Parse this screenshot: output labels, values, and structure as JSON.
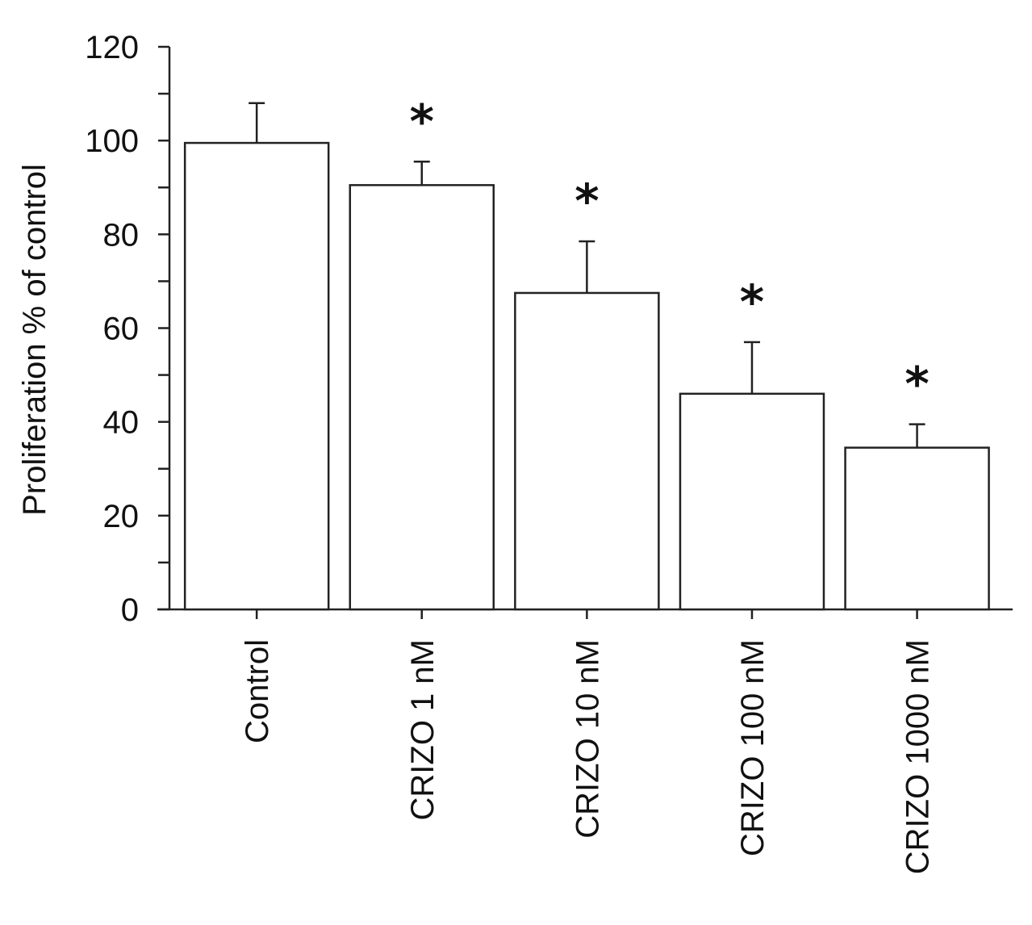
{
  "chart_data": {
    "type": "bar",
    "title": "",
    "xlabel": "",
    "ylabel": "Proliferation % of control",
    "ylim": [
      0,
      120
    ],
    "yticks": [
      0,
      20,
      40,
      60,
      80,
      100,
      120
    ],
    "yminor_step": 10,
    "grid": false,
    "legend": "none",
    "categories": [
      "Control",
      "CRIZO 1 nM",
      "CRIZO 10 nM",
      "CRIZO 100 nM",
      "CRIZO 1000 nM"
    ],
    "series": [
      {
        "values": [
          99.5,
          90.5,
          67.5,
          46,
          34.5
        ],
        "error": [
          8.5,
          5,
          11,
          11,
          5
        ],
        "significance": [
          "",
          "*",
          "*",
          "*",
          "*"
        ]
      }
    ],
    "colors": {
      "bar_fill": "#ffffff",
      "bar_stroke": "#222222",
      "text": "#111111"
    }
  }
}
